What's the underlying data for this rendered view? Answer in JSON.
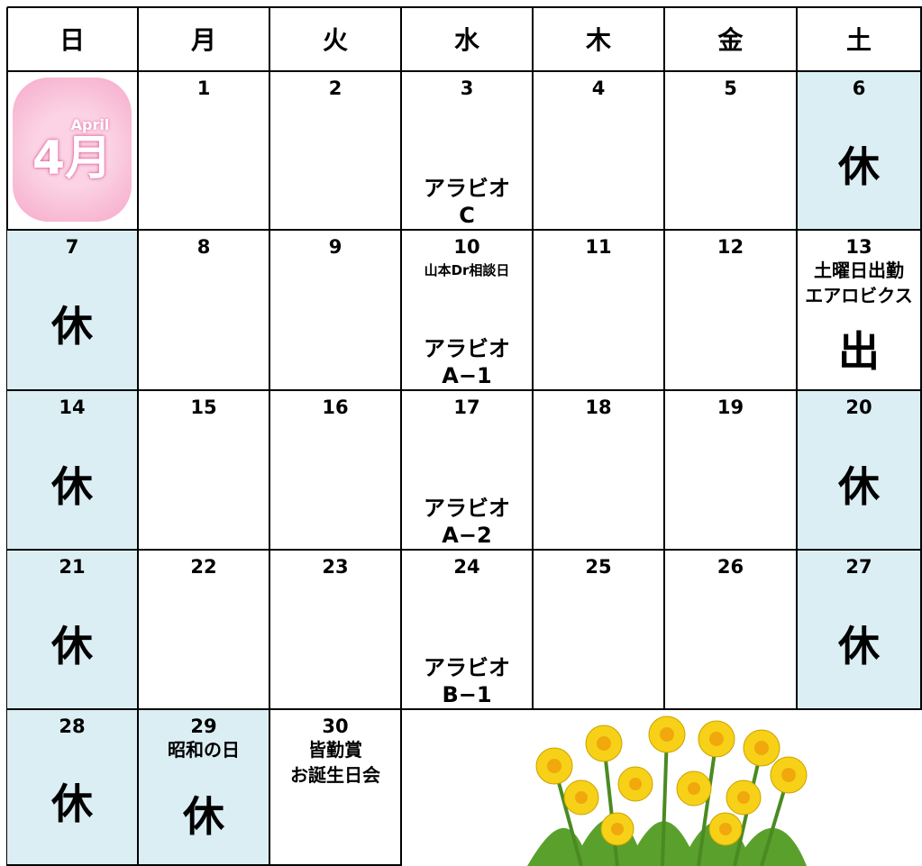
{
  "header": [
    "日",
    "月",
    "火",
    "水",
    "木",
    "金",
    "土"
  ],
  "badge": {
    "small": "April",
    "big": "4月"
  },
  "weeks": [
    [
      {
        "badge": true
      },
      {
        "day": "1"
      },
      {
        "day": "2"
      },
      {
        "day": "3",
        "bottom_notes": [
          "アラビオ",
          "C"
        ]
      },
      {
        "day": "4"
      },
      {
        "day": "5"
      },
      {
        "day": "6",
        "mark": "休",
        "holiday": true
      }
    ],
    [
      {
        "day": "7",
        "mark": "休",
        "holiday": true
      },
      {
        "day": "8"
      },
      {
        "day": "9"
      },
      {
        "day": "10",
        "small_notes": [
          "山本Dr相談日"
        ],
        "bottom_notes": [
          "アラビオ",
          "A−1"
        ]
      },
      {
        "day": "11"
      },
      {
        "day": "12"
      },
      {
        "day": "13",
        "top_notes": [
          "土曜日出勤",
          "エアロビクス"
        ],
        "mark": "出"
      }
    ],
    [
      {
        "day": "14",
        "mark": "休",
        "holiday": true
      },
      {
        "day": "15"
      },
      {
        "day": "16"
      },
      {
        "day": "17",
        "bottom_notes": [
          "アラビオ",
          "A−2"
        ]
      },
      {
        "day": "18"
      },
      {
        "day": "19"
      },
      {
        "day": "20",
        "mark": "休",
        "holiday": true
      }
    ],
    [
      {
        "day": "21",
        "mark": "休",
        "holiday": true
      },
      {
        "day": "22"
      },
      {
        "day": "23"
      },
      {
        "day": "24",
        "bottom_notes": [
          "アラビオ",
          "B−1"
        ]
      },
      {
        "day": "25"
      },
      {
        "day": "26"
      },
      {
        "day": "27",
        "mark": "休",
        "holiday": true
      }
    ],
    [
      {
        "day": "28",
        "mark": "休",
        "holiday": true
      },
      {
        "day": "29",
        "top_notes": [
          "昭和の日"
        ],
        "mark": "休",
        "holiday": true
      },
      {
        "day": "30",
        "top_notes": [
          "皆勤賞",
          "お誕生日会"
        ]
      }
    ]
  ]
}
